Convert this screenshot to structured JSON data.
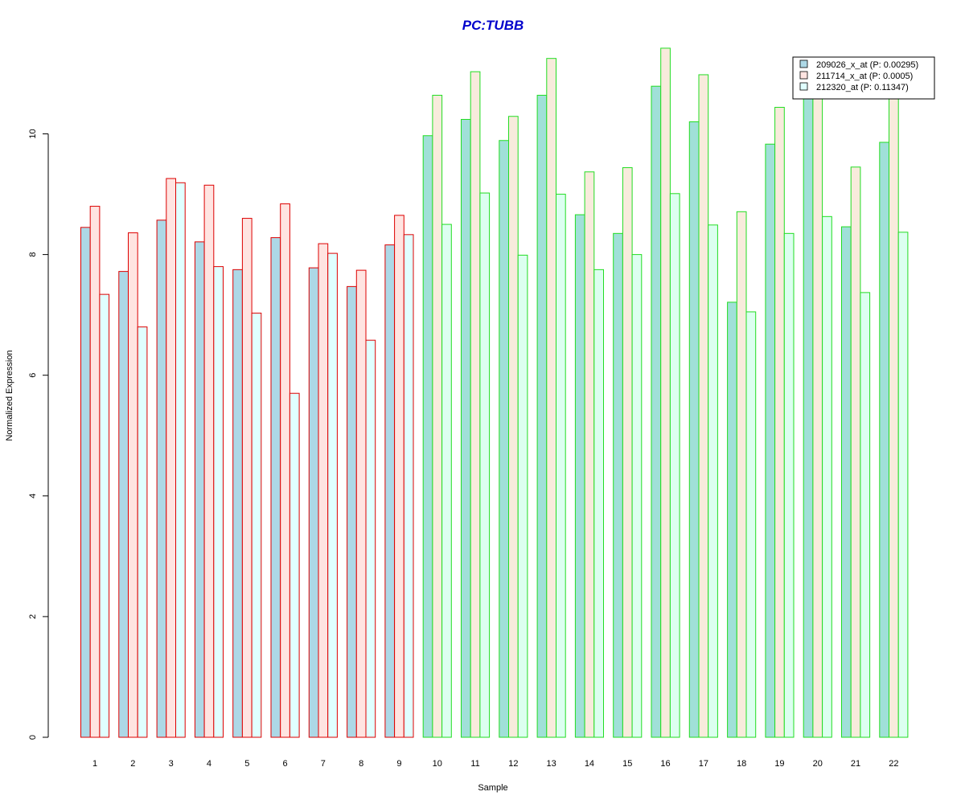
{
  "chart_data": {
    "type": "bar",
    "title": "PC:TUBB",
    "xlabel": "Sample",
    "ylabel": "Normalized Expression",
    "ylim": [
      0,
      11.5
    ],
    "yticks": [
      0,
      2,
      4,
      6,
      8,
      10
    ],
    "grid": false,
    "legend_position": "top-right",
    "categories": [
      "1",
      "2",
      "3",
      "4",
      "5",
      "6",
      "7",
      "8",
      "9",
      "10",
      "11",
      "12",
      "13",
      "14",
      "15",
      "16",
      "17",
      "18",
      "19",
      "20",
      "21",
      "22"
    ],
    "group_border_colors": [
      "#dd0000",
      "#dd0000",
      "#dd0000",
      "#dd0000",
      "#dd0000",
      "#dd0000",
      "#dd0000",
      "#dd0000",
      "#dd0000",
      "#22dd22",
      "#22dd22",
      "#22dd22",
      "#22dd22",
      "#22dd22",
      "#22dd22",
      "#22dd22",
      "#22dd22",
      "#22dd22",
      "#22dd22",
      "#22dd22",
      "#22dd22",
      "#22dd22"
    ],
    "series": [
      {
        "name": "209026_x_at (P: 0.00295)",
        "fill": "#add8e6",
        "values": [
          8.45,
          7.72,
          8.57,
          8.21,
          7.75,
          8.28,
          7.78,
          7.47,
          8.16,
          9.97,
          10.24,
          9.89,
          10.64,
          8.66,
          8.35,
          10.79,
          10.2,
          7.21,
          9.83,
          10.66,
          8.46,
          9.86
        ]
      },
      {
        "name": "211714_x_at (P: 0.0005)",
        "fill": "#ffe4e1",
        "values": [
          8.8,
          8.36,
          9.26,
          9.15,
          8.6,
          8.84,
          8.18,
          7.74,
          8.65,
          10.64,
          11.03,
          10.29,
          11.25,
          9.37,
          9.44,
          11.42,
          10.98,
          8.71,
          10.44,
          10.62,
          9.45,
          10.64
        ]
      },
      {
        "name": "212320_at (P: 0.11347)",
        "fill": "#e0ffff",
        "values": [
          7.34,
          6.8,
          9.19,
          7.8,
          7.03,
          5.7,
          8.02,
          6.58,
          8.33,
          8.5,
          9.02,
          7.99,
          9.0,
          7.75,
          8.0,
          9.01,
          8.49,
          7.05,
          8.35,
          8.63,
          7.37,
          8.37
        ]
      }
    ],
    "colors": {
      "title": "#0000cc",
      "group_a_border": "#dd0000",
      "group_b_border": "#22dd22",
      "group_b_fill_series1": "#a0e0d8",
      "group_b_fill_series2": "#f8ebdc",
      "group_b_fill_series3": "#dcfff0"
    }
  }
}
